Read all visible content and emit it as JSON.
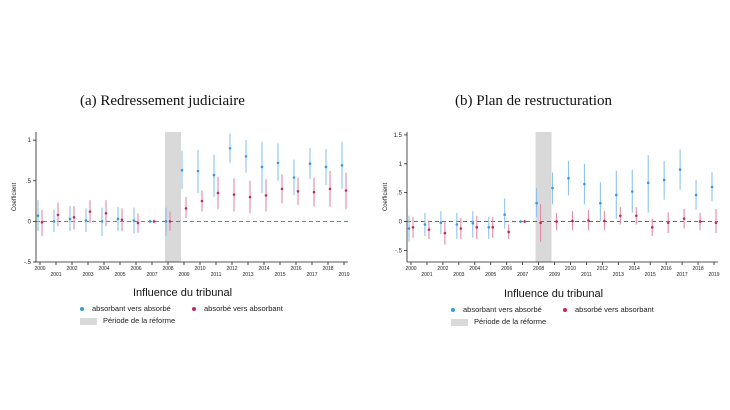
{
  "panels": [
    {
      "title": "(a) Redressement judiciaire",
      "legend_title": "Influence du tribunal",
      "legend": {
        "blue": "absorbant vers absorbé",
        "red": "absorbé vers absorbant",
        "reform": "Période de la réforme"
      }
    },
    {
      "title": "(b) Plan de restructuration",
      "legend_title": "Influence du tribunal",
      "legend": {
        "blue": "absorbant vers absorbé",
        "red": "absorbé vers absorbant",
        "reform": "Période de la réforme"
      }
    }
  ],
  "colors": {
    "blue": "#3a98dc",
    "red": "#c8265a",
    "blue_ci": "#8cc4ec",
    "red_ci": "#e08aa8",
    "reform": "#d9d9d9"
  },
  "chart_data": [
    {
      "type": "scatter",
      "title": "(a) Redressement judiciaire",
      "ylabel": "Coefficient",
      "ylim": [
        -0.5,
        1.1
      ],
      "yticks": [
        "-.5",
        "0",
        ".5",
        "1"
      ],
      "ytick_values": [
        -0.5,
        0,
        0.5,
        1
      ],
      "years": [
        2000,
        2001,
        2002,
        2003,
        2004,
        2005,
        2006,
        2007,
        2008,
        2009,
        2010,
        2011,
        2012,
        2013,
        2014,
        2015,
        2016,
        2017,
        2018,
        2019
      ],
      "xtick_top": [
        "2000",
        "2002",
        "2004",
        "2006",
        "2008",
        "2010",
        "2012",
        "2014",
        "2016",
        "2018"
      ],
      "xtick_bottom": [
        "2001",
        "2003",
        "2005",
        "2007",
        "2009",
        "2011",
        "2013",
        "2015",
        "2017",
        "2019"
      ],
      "reform_period": [
        2008,
        2008.5
      ],
      "series": [
        {
          "name": "absorbant vers absorbé",
          "values": [
            0.07,
            0.0,
            0.03,
            0.01,
            0.0,
            0.03,
            0.01,
            0.0,
            0.0,
            0.63,
            0.62,
            0.57,
            0.9,
            0.8,
            0.67,
            0.72,
            0.54,
            0.71,
            0.67,
            0.69
          ],
          "ci_low": [
            -0.12,
            -0.13,
            -0.12,
            -0.13,
            -0.18,
            -0.12,
            -0.15,
            -0.02,
            -0.18,
            0.4,
            0.35,
            0.3,
            0.72,
            0.6,
            0.35,
            0.5,
            0.32,
            0.52,
            0.45,
            0.4
          ],
          "ci_high": [
            0.26,
            0.14,
            0.19,
            0.16,
            0.17,
            0.18,
            0.17,
            0.02,
            0.17,
            0.87,
            0.88,
            0.82,
            1.08,
            1.0,
            0.98,
            0.96,
            0.76,
            0.9,
            0.89,
            0.98
          ]
        },
        {
          "name": "absorbé vers absorbant",
          "values": [
            -0.01,
            0.08,
            0.05,
            0.12,
            0.1,
            0.02,
            -0.02,
            0.0,
            0.0,
            0.16,
            0.25,
            0.35,
            0.33,
            0.3,
            0.32,
            0.4,
            0.37,
            0.36,
            0.4,
            0.38
          ],
          "ci_low": [
            -0.18,
            -0.06,
            -0.1,
            -0.02,
            -0.06,
            -0.12,
            -0.14,
            -0.02,
            -0.12,
            0.04,
            0.12,
            0.15,
            0.12,
            0.1,
            0.12,
            0.22,
            0.2,
            0.18,
            0.18,
            0.15
          ],
          "ci_high": [
            0.14,
            0.23,
            0.19,
            0.26,
            0.26,
            0.16,
            0.1,
            0.02,
            0.12,
            0.3,
            0.38,
            0.55,
            0.53,
            0.5,
            0.52,
            0.58,
            0.54,
            0.54,
            0.62,
            0.6
          ]
        }
      ]
    },
    {
      "type": "scatter",
      "title": "(b) Plan de restructuration",
      "ylabel": "Coefficient",
      "ylim": [
        -0.7,
        1.55
      ],
      "yticks": [
        "-.5",
        "0",
        ".5",
        "1",
        "1.5"
      ],
      "ytick_values": [
        -0.5,
        0,
        0.5,
        1,
        1.5
      ],
      "years": [
        2000,
        2001,
        2002,
        2003,
        2004,
        2005,
        2006,
        2007,
        2008,
        2009,
        2010,
        2011,
        2012,
        2013,
        2014,
        2015,
        2016,
        2017,
        2018,
        2019
      ],
      "xtick_top": [
        "2000",
        "2002",
        "2004",
        "2006",
        "2008",
        "2010",
        "2012",
        "2014",
        "2016",
        "2018"
      ],
      "xtick_bottom": [
        "2001",
        "2003",
        "2005",
        "2007",
        "2009",
        "2011",
        "2013",
        "2015",
        "2017",
        "2019"
      ],
      "reform_period": [
        2008,
        2008.5
      ],
      "series": [
        {
          "name": "absorbant vers absorbé",
          "values": [
            -0.12,
            -0.05,
            -0.02,
            -0.05,
            -0.03,
            -0.1,
            0.12,
            0.0,
            0.32,
            0.58,
            0.75,
            0.65,
            0.32,
            0.46,
            0.52,
            0.67,
            0.72,
            0.9,
            0.46,
            0.6
          ],
          "ci_low": [
            -0.35,
            -0.25,
            -0.22,
            -0.3,
            -0.28,
            -0.3,
            -0.12,
            -0.02,
            0.08,
            0.3,
            0.45,
            0.3,
            0.0,
            0.05,
            0.15,
            0.15,
            0.38,
            0.55,
            0.2,
            0.35
          ],
          "ci_high": [
            0.1,
            0.15,
            0.18,
            0.15,
            0.18,
            0.08,
            0.4,
            0.02,
            0.58,
            0.85,
            1.05,
            1.0,
            0.68,
            0.88,
            0.9,
            1.15,
            1.05,
            1.25,
            0.72,
            0.85
          ]
        },
        {
          "name": "absorbé vers absorbant",
          "values": [
            -0.1,
            -0.14,
            -0.2,
            -0.12,
            -0.1,
            -0.1,
            -0.18,
            0.0,
            -0.02,
            0.0,
            0.01,
            0.02,
            0.01,
            0.1,
            0.1,
            -0.1,
            -0.02,
            0.05,
            0.0,
            -0.02
          ],
          "ci_low": [
            -0.28,
            -0.3,
            -0.4,
            -0.3,
            -0.3,
            -0.28,
            -0.3,
            -0.02,
            -0.35,
            -0.15,
            -0.15,
            -0.15,
            -0.15,
            -0.05,
            -0.05,
            -0.25,
            -0.2,
            -0.12,
            -0.15,
            -0.2
          ],
          "ci_high": [
            0.08,
            0.02,
            0.0,
            0.06,
            0.1,
            0.08,
            -0.05,
            0.02,
            0.3,
            0.15,
            0.18,
            0.2,
            0.18,
            0.25,
            0.25,
            0.05,
            0.16,
            0.22,
            0.15,
            0.22
          ]
        }
      ]
    }
  ]
}
